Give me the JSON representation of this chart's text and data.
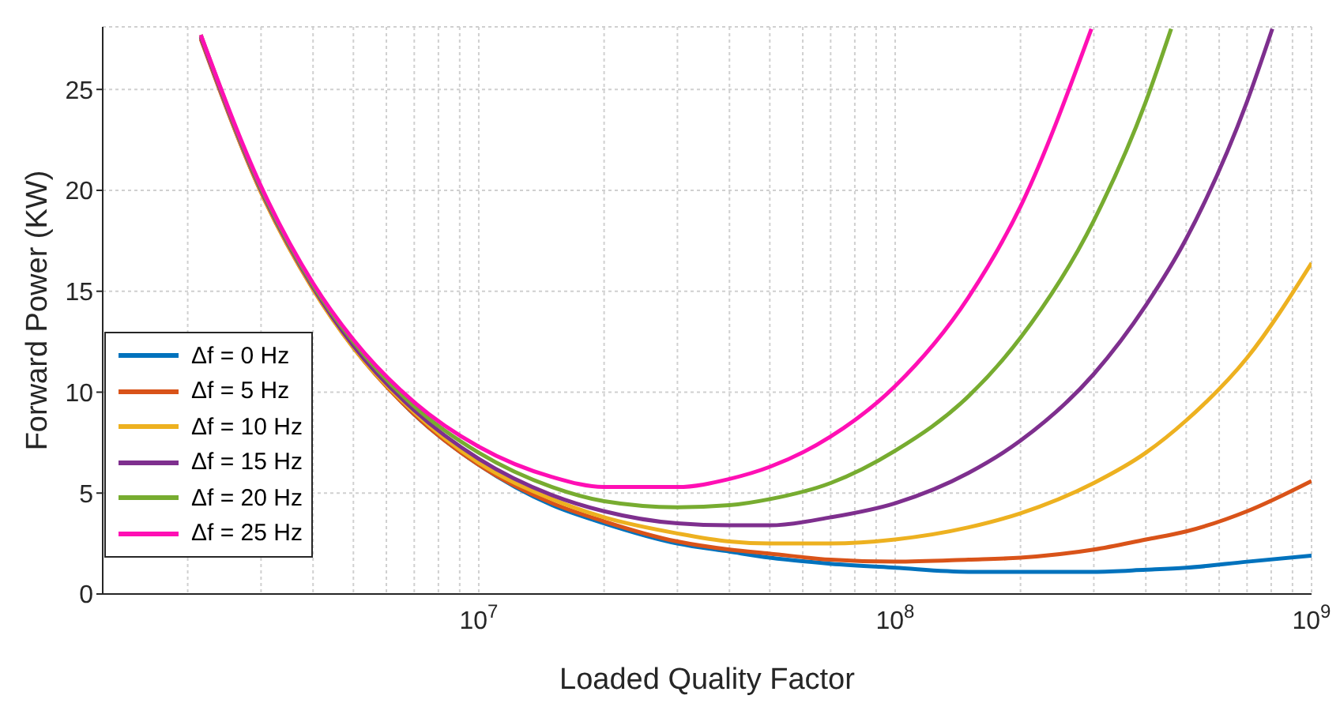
{
  "chart_data": {
    "type": "line",
    "xlabel": "Loaded Quality Factor",
    "ylabel": "Forward Power (KW)",
    "log": "x",
    "xlim": [
      1250000,
      1000000000
    ],
    "ylim": [
      0,
      28.1
    ],
    "xticks": [
      {
        "value": 2000000,
        "label": null
      },
      {
        "value": 3000000,
        "label": null
      },
      {
        "value": 4000000,
        "label": null
      },
      {
        "value": 5000000,
        "label": null
      },
      {
        "value": 6000000,
        "label": null
      },
      {
        "value": 7000000,
        "label": null
      },
      {
        "value": 8000000,
        "label": null
      },
      {
        "value": 9000000,
        "label": null
      },
      {
        "value": 10000000,
        "label": "10$^{7}$"
      },
      {
        "value": 20000000,
        "label": null
      },
      {
        "value": 30000000,
        "label": null
      },
      {
        "value": 40000000,
        "label": null
      },
      {
        "value": 50000000,
        "label": null
      },
      {
        "value": 60000000,
        "label": null
      },
      {
        "value": 70000000,
        "label": null
      },
      {
        "value": 80000000,
        "label": null
      },
      {
        "value": 90000000,
        "label": null
      },
      {
        "value": 100000000,
        "label": "10$^{8}$"
      },
      {
        "value": 200000000,
        "label": null
      },
      {
        "value": 300000000,
        "label": null
      },
      {
        "value": 400000000,
        "label": null
      },
      {
        "value": 500000000,
        "label": null
      },
      {
        "value": 600000000,
        "label": null
      },
      {
        "value": 700000000,
        "label": null
      },
      {
        "value": 800000000,
        "label": null
      },
      {
        "value": 900000000,
        "label": null
      },
      {
        "value": 1000000000,
        "label": "10$^{9}$"
      }
    ],
    "yticks": [
      0,
      5,
      10,
      15,
      20,
      25
    ],
    "grid": true,
    "legend": "bottom left",
    "marker": "none",
    "line_style": "solid",
    "x": [
      2150000,
      3000000,
      4000000,
      5000000,
      7000000,
      10000000,
      15000000,
      20000000,
      30000000,
      40000000,
      50000000,
      70000000,
      100000000,
      150000000,
      200000000,
      300000000,
      400000000,
      500000000,
      700000000,
      1000000000
    ],
    "series": [
      {
        "name": "Δf = 0 Hz",
        "color": "#0072bd",
        "values": [
          null,
          null,
          null,
          12.2,
          8.9,
          6.4,
          4.4,
          3.5,
          2.5,
          2.1,
          1.8,
          1.5,
          1.3,
          1.1,
          1.1,
          1.1,
          1.2,
          1.3,
          1.6,
          1.9
        ]
      },
      {
        "name": "Δf = 5 Hz",
        "color": "#d95319",
        "values": [
          27.5,
          19.9,
          15.1,
          12.2,
          8.9,
          6.4,
          4.5,
          3.6,
          2.6,
          2.2,
          2.0,
          1.7,
          1.6,
          1.7,
          1.8,
          2.2,
          2.7,
          3.1,
          4.1,
          5.6
        ]
      },
      {
        "name": "Δf = 10 Hz",
        "color": "#edb120",
        "values": [
          27.6,
          19.9,
          15.1,
          12.2,
          9.0,
          6.5,
          4.7,
          3.8,
          3.0,
          2.6,
          2.5,
          2.5,
          2.7,
          3.3,
          4.0,
          5.5,
          7.0,
          8.6,
          11.7,
          16.4
        ]
      },
      {
        "name": "Δf = 15 Hz",
        "color": "#7e2f8e",
        "x": [
          2150000,
          3000000,
          4000000,
          5000000,
          7000000,
          10000000,
          15000000,
          20000000,
          30000000,
          40000000,
          50000000,
          70000000,
          100000000,
          150000000,
          200000000,
          300000000,
          400000000,
          500000000,
          700000000,
          805000000
        ],
        "values": [
          27.6,
          20.0,
          15.2,
          12.3,
          9.1,
          6.7,
          4.9,
          4.1,
          3.5,
          3.4,
          3.4,
          3.8,
          4.5,
          6.0,
          7.6,
          10.9,
          14.3,
          17.6,
          24.4,
          28
        ]
      },
      {
        "name": "Δf = 20 Hz",
        "color": "#77ac30",
        "x": [
          2150000,
          3000000,
          4000000,
          5000000,
          7000000,
          10000000,
          15000000,
          20000000,
          30000000,
          40000000,
          50000000,
          70000000,
          100000000,
          150000000,
          200000000,
          300000000,
          400000000,
          460000000
        ],
        "values": [
          27.7,
          20.1,
          15.3,
          12.5,
          9.3,
          7.0,
          5.3,
          4.6,
          4.3,
          4.4,
          4.7,
          5.5,
          7.1,
          9.8,
          12.7,
          18.5,
          24.4,
          28
        ]
      },
      {
        "name": "Δf = 25 Hz",
        "color": "#ff0fb4",
        "x": [
          2150000,
          3000000,
          4000000,
          5000000,
          7000000,
          10000000,
          15000000,
          20000000,
          30000000,
          40000000,
          50000000,
          70000000,
          100000000,
          150000000,
          200000000,
          296000000
        ],
        "values": [
          27.7,
          20.2,
          15.4,
          12.6,
          9.5,
          7.3,
          5.8,
          5.3,
          5.3,
          5.7,
          6.3,
          7.8,
          10.3,
          14.7,
          19.2,
          28
        ]
      }
    ]
  }
}
